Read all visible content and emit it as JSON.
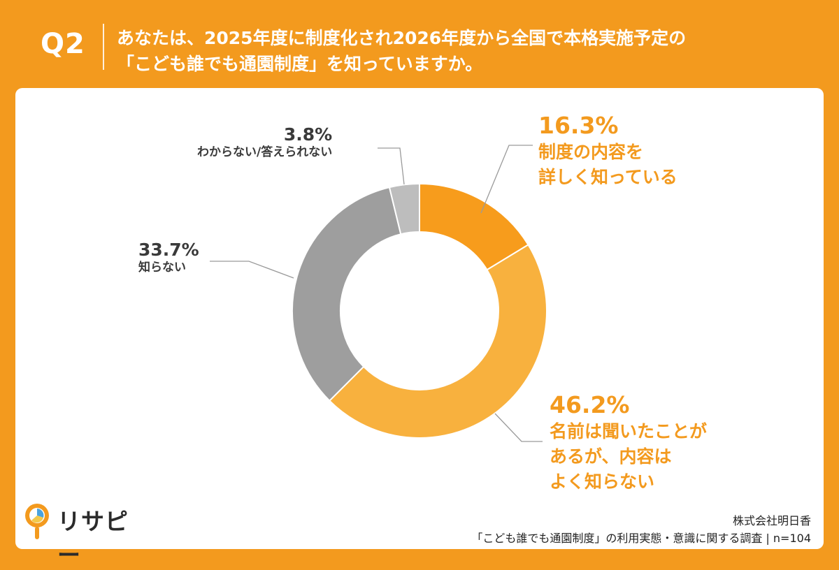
{
  "header": {
    "q_number": "Q2",
    "question_line1": "あなたは、2025年度に制度化され2026年度から全国で本格実施予定の",
    "question_line2": "「こども誰でも通園制度」を知っていますか。"
  },
  "chart_data": {
    "type": "pie",
    "donut": true,
    "start_angle": "12 o'clock",
    "direction": "clockwise",
    "slices": [
      {
        "pct": "16.3%",
        "value": 16.3,
        "label_lines": [
          "制度の内容を",
          "詳しく知っている"
        ],
        "color": "#F79C1C"
      },
      {
        "pct": "46.2%",
        "value": 46.2,
        "label_lines": [
          "名前は聞いたことが",
          "あるが、内容は",
          "よく知らない"
        ],
        "color": "#F8B13E"
      },
      {
        "pct": "33.7%",
        "value": 33.7,
        "label_lines": [
          "知らない"
        ],
        "color": "#9E9E9E"
      },
      {
        "pct": "3.8%",
        "value": 3.8,
        "label_lines": [
          "わからない/答えられない"
        ],
        "color": "#BDBDBD"
      }
    ]
  },
  "logo": {
    "text": "リサピー"
  },
  "footer": {
    "company": "株式会社明日香",
    "survey": "「こども誰でも通園制度」の利用実態・意識に関する調査 | n=104"
  }
}
